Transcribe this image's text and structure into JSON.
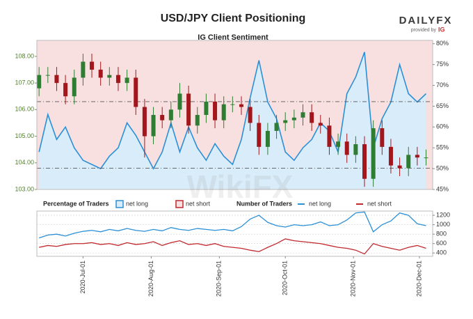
{
  "title": "USD/JPY Client Positioning",
  "brand": {
    "name": "DAILYFX",
    "tagline": "provided by",
    "partner": "IG"
  },
  "watermark": "WikiFX",
  "chart_data": [
    {
      "type": "candlestick",
      "subtitle": "IG Client Sentiment",
      "x": [
        "2020-06-11",
        "2020-06-15",
        "2020-06-19",
        "2020-06-23",
        "2020-06-27",
        "2020-07-01",
        "2020-07-05",
        "2020-07-09",
        "2020-07-13",
        "2020-07-17",
        "2020-07-21",
        "2020-07-25",
        "2020-07-29",
        "2020-08-02",
        "2020-08-06",
        "2020-08-10",
        "2020-08-14",
        "2020-08-18",
        "2020-08-22",
        "2020-08-26",
        "2020-08-30",
        "2020-09-03",
        "2020-09-07",
        "2020-09-11",
        "2020-09-15",
        "2020-09-19",
        "2020-09-23",
        "2020-09-27",
        "2020-10-01",
        "2020-10-05",
        "2020-10-09",
        "2020-10-13",
        "2020-10-17",
        "2020-10-21",
        "2020-10-25",
        "2020-10-29",
        "2020-11-02",
        "2020-11-06",
        "2020-11-10",
        "2020-11-14",
        "2020-11-18",
        "2020-11-22",
        "2020-11-26",
        "2020-11-30",
        "2020-12-04"
      ],
      "open": [
        106.8,
        107.3,
        107.3,
        107.0,
        106.5,
        107.2,
        107.8,
        107.5,
        107.2,
        107.3,
        107.0,
        107.2,
        106.1,
        105.0,
        105.8,
        105.6,
        106.0,
        106.6,
        105.4,
        105.8,
        106.3,
        105.6,
        106.2,
        106.2,
        106.1,
        105.5,
        104.6,
        105.2,
        105.5,
        105.6,
        105.7,
        105.9,
        105.5,
        105.4,
        104.6,
        104.8,
        104.3,
        104.7,
        103.4,
        105.3,
        104.6,
        103.9,
        103.8,
        104.3,
        104.2
      ],
      "high": [
        107.6,
        107.6,
        107.6,
        107.3,
        107.5,
        108.1,
        108.1,
        107.8,
        107.6,
        107.6,
        107.5,
        107.5,
        106.4,
        106.1,
        106.1,
        106.3,
        107.0,
        106.9,
        106.1,
        106.6,
        106.6,
        106.5,
        106.5,
        106.5,
        106.4,
        105.8,
        105.5,
        105.8,
        105.9,
        106.0,
        106.2,
        106.2,
        105.8,
        105.7,
        105.1,
        105.1,
        105.0,
        105.0,
        105.6,
        105.6,
        104.9,
        104.2,
        104.6,
        104.6,
        104.5
      ],
      "low": [
        106.5,
        107.0,
        106.7,
        106.2,
        106.2,
        106.9,
        107.2,
        106.9,
        106.9,
        106.7,
        106.7,
        105.8,
        104.2,
        104.7,
        105.3,
        105.3,
        105.7,
        105.1,
        105.1,
        105.5,
        105.3,
        105.3,
        105.9,
        105.8,
        105.2,
        104.3,
        104.3,
        104.9,
        105.2,
        105.3,
        105.4,
        105.2,
        105.1,
        104.3,
        104.3,
        104.0,
        104.0,
        103.1,
        103.1,
        104.3,
        103.6,
        103.5,
        103.5,
        103.9,
        103.9
      ],
      "close": [
        107.3,
        107.3,
        107.0,
        106.5,
        107.2,
        107.8,
        107.5,
        107.2,
        107.3,
        107.0,
        107.2,
        106.1,
        105.0,
        105.8,
        105.6,
        106.0,
        106.6,
        105.4,
        105.8,
        106.3,
        105.6,
        106.2,
        106.2,
        106.1,
        105.5,
        104.6,
        105.2,
        105.5,
        105.6,
        105.7,
        105.9,
        105.5,
        105.4,
        104.6,
        104.8,
        104.3,
        104.7,
        103.4,
        105.3,
        104.6,
        103.9,
        103.8,
        104.3,
        104.2,
        104.2
      ],
      "up_color": "#2e7d32",
      "down_color": "#a3161c",
      "xlim": [
        "2020-06-10",
        "2020-12-07"
      ],
      "ylim": [
        103,
        108.6
      ],
      "yticks": [
        {
          "value": 103,
          "label": "103.00"
        },
        {
          "value": 104,
          "label": "104.00"
        },
        {
          "value": 105,
          "label": "105.00"
        },
        {
          "value": 106,
          "label": "106.00"
        },
        {
          "value": 107,
          "label": "107.00"
        },
        {
          "value": 108,
          "label": "108.00"
        }
      ],
      "ytick_color": "#4f7f2a",
      "y2lim": [
        45,
        80.8
      ],
      "y2ticks": [
        {
          "value": 45,
          "label": "45%"
        },
        {
          "value": 50,
          "label": "50%"
        },
        {
          "value": 55,
          "label": "55%"
        },
        {
          "value": 60,
          "label": "60%"
        },
        {
          "value": 65,
          "label": "65%"
        },
        {
          "value": 70,
          "label": "70%"
        },
        {
          "value": 75,
          "label": "75%"
        },
        {
          "value": 80,
          "label": "80%"
        }
      ],
      "reference_lines": [
        106.3,
        103.8
      ],
      "legend_title": "Percentage of Traders",
      "series": [
        {
          "name": "net long",
          "axis": "y2",
          "color": "#2b8fd6",
          "fill": "#d8ecf9",
          "values": [
            54,
            63,
            57,
            60,
            55,
            52,
            51,
            50,
            53,
            55,
            61,
            58,
            54,
            50,
            54,
            61,
            54,
            60,
            55,
            52,
            56,
            53,
            51,
            57,
            67,
            76,
            66,
            62,
            54,
            52,
            55,
            57,
            61,
            59,
            54,
            68,
            72,
            78,
            55,
            62,
            66,
            75,
            68,
            66,
            68
          ]
        }
      ],
      "background": {
        "name": "net short",
        "color": "#c0282d",
        "fill": "#f9e0e0"
      }
    },
    {
      "type": "line",
      "legend_title": "Number of Traders",
      "x": [
        "2020-06-11",
        "2020-06-15",
        "2020-06-19",
        "2020-06-23",
        "2020-06-27",
        "2020-07-01",
        "2020-07-05",
        "2020-07-09",
        "2020-07-13",
        "2020-07-17",
        "2020-07-21",
        "2020-07-25",
        "2020-07-29",
        "2020-08-02",
        "2020-08-06",
        "2020-08-10",
        "2020-08-14",
        "2020-08-18",
        "2020-08-22",
        "2020-08-26",
        "2020-08-30",
        "2020-09-03",
        "2020-09-07",
        "2020-09-11",
        "2020-09-15",
        "2020-09-19",
        "2020-09-23",
        "2020-09-27",
        "2020-10-01",
        "2020-10-05",
        "2020-10-09",
        "2020-10-13",
        "2020-10-17",
        "2020-10-21",
        "2020-10-25",
        "2020-10-29",
        "2020-11-02",
        "2020-11-06",
        "2020-11-10",
        "2020-11-14",
        "2020-11-18",
        "2020-11-22",
        "2020-11-26",
        "2020-11-30",
        "2020-12-04"
      ],
      "xlim": [
        "2020-06-10",
        "2020-12-07"
      ],
      "xticks": [
        {
          "value": "2020-07-01",
          "label": "2020-Jul-01"
        },
        {
          "value": "2020-08-01",
          "label": "2020-Aug-01"
        },
        {
          "value": "2020-09-01",
          "label": "2020-Sep-01"
        },
        {
          "value": "2020-10-01",
          "label": "2020-Oct-01"
        },
        {
          "value": "2020-11-01",
          "label": "2020-Nov-01"
        },
        {
          "value": "2020-12-01",
          "label": "2020-Dec-01"
        }
      ],
      "ylim": [
        330,
        1290
      ],
      "yticks": [
        400,
        600,
        800,
        1000,
        1200
      ],
      "grid": true,
      "series": [
        {
          "name": "net long",
          "color": "#2b8fd6",
          "values": [
            720,
            780,
            800,
            760,
            820,
            860,
            880,
            850,
            900,
            870,
            920,
            880,
            860,
            900,
            870,
            940,
            900,
            880,
            920,
            900,
            880,
            900,
            870,
            960,
            1120,
            1200,
            1050,
            980,
            950,
            1000,
            980,
            1000,
            1060,
            980,
            1000,
            1100,
            1250,
            1270,
            850,
            1000,
            1080,
            1250,
            1200,
            1020,
            980
          ]
        },
        {
          "name": "net short",
          "color": "#c0282d",
          "values": [
            520,
            560,
            540,
            580,
            600,
            600,
            620,
            580,
            600,
            560,
            620,
            580,
            600,
            640,
            560,
            620,
            660,
            580,
            600,
            560,
            600,
            540,
            520,
            500,
            460,
            430,
            520,
            600,
            700,
            660,
            640,
            620,
            600,
            560,
            520,
            500,
            460,
            380,
            600,
            540,
            500,
            460,
            520,
            560,
            500
          ]
        }
      ]
    }
  ]
}
